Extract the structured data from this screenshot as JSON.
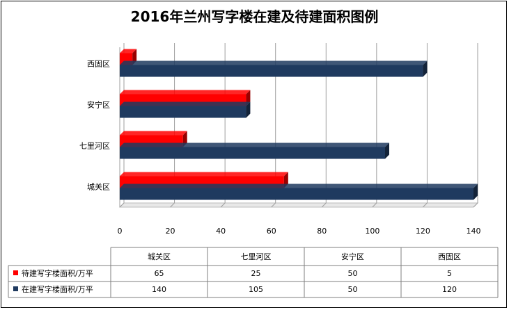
{
  "chart_data": {
    "type": "bar",
    "orientation": "horizontal",
    "title": "2016年兰州写字楼在建及待建面积图例",
    "categories": [
      "城关区",
      "七里河区",
      "安宁区",
      "西固区"
    ],
    "series": [
      {
        "name": "待建写字楼面积/万平",
        "values": [
          65,
          25,
          50,
          5
        ],
        "color": "#ff0000"
      },
      {
        "name": "在建写字楼面积/万平",
        "values": [
          140,
          105,
          50,
          120
        ],
        "color": "#1f3a5f"
      }
    ],
    "xlim": [
      0,
      140
    ],
    "xticks": [
      0,
      20,
      40,
      60,
      80,
      100,
      120,
      140
    ],
    "grid": true,
    "legend": "data-table"
  }
}
